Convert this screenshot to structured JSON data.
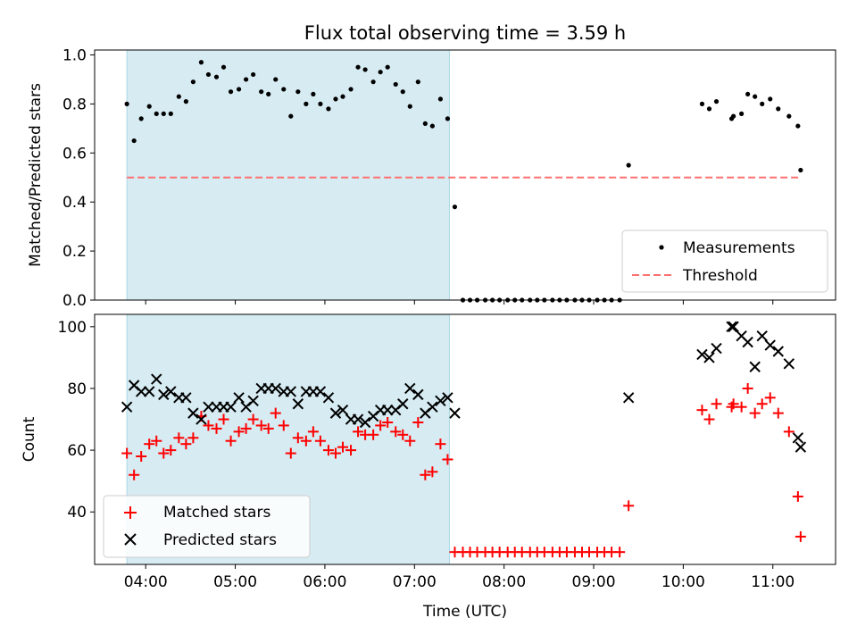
{
  "title": "Flux total observing time = 3.59 h",
  "colors": {
    "shade": "#add8e6",
    "measurement": "#000000",
    "threshold": "#ff7070",
    "matched": "#ff0000",
    "predicted": "#000000"
  },
  "xlabel": "Time (UTC)",
  "x_ticks": [
    "04:00",
    "05:00",
    "06:00",
    "07:00",
    "08:00",
    "09:00",
    "10:00",
    "11:00"
  ],
  "chart_data": [
    {
      "type": "scatter",
      "ylabel": "Matched/Predicted stars",
      "xlim": [
        3.43,
        11.7
      ],
      "ylim": [
        0,
        1.02
      ],
      "y_ticks": [
        "0.0",
        "0.2",
        "0.4",
        "0.6",
        "0.8",
        "1.0"
      ],
      "shaded_region": [
        3.79,
        7.39
      ],
      "legend": {
        "position": "lower-right",
        "entries": [
          "Measurements",
          "Threshold"
        ]
      },
      "threshold": {
        "name": "Threshold",
        "value": 0.5,
        "x": [
          3.79,
          11.32
        ]
      },
      "series": [
        {
          "name": "Measurements",
          "points": [
            [
              3.79,
              0.8
            ],
            [
              3.87,
              0.65
            ],
            [
              3.95,
              0.74
            ],
            [
              4.04,
              0.79
            ],
            [
              4.12,
              0.76
            ],
            [
              4.2,
              0.76
            ],
            [
              4.28,
              0.76
            ],
            [
              4.37,
              0.83
            ],
            [
              4.45,
              0.81
            ],
            [
              4.53,
              0.89
            ],
            [
              4.62,
              0.97
            ],
            [
              4.7,
              0.92
            ],
            [
              4.79,
              0.91
            ],
            [
              4.87,
              0.95
            ],
            [
              4.95,
              0.85
            ],
            [
              5.04,
              0.86
            ],
            [
              5.12,
              0.9
            ],
            [
              5.2,
              0.92
            ],
            [
              5.29,
              0.85
            ],
            [
              5.37,
              0.84
            ],
            [
              5.45,
              0.9
            ],
            [
              5.54,
              0.86
            ],
            [
              5.62,
              0.75
            ],
            [
              5.7,
              0.85
            ],
            [
              5.79,
              0.8
            ],
            [
              5.87,
              0.84
            ],
            [
              5.95,
              0.8
            ],
            [
              6.04,
              0.78
            ],
            [
              6.12,
              0.82
            ],
            [
              6.2,
              0.83
            ],
            [
              6.29,
              0.86
            ],
            [
              6.37,
              0.95
            ],
            [
              6.45,
              0.94
            ],
            [
              6.54,
              0.89
            ],
            [
              6.62,
              0.93
            ],
            [
              6.7,
              0.95
            ],
            [
              6.79,
              0.88
            ],
            [
              6.87,
              0.85
            ],
            [
              6.95,
              0.79
            ],
            [
              7.04,
              0.89
            ],
            [
              7.12,
              0.72
            ],
            [
              7.2,
              0.71
            ],
            [
              7.29,
              0.82
            ],
            [
              7.37,
              0.74
            ],
            [
              7.45,
              0.38
            ],
            [
              7.54,
              0.0
            ],
            [
              7.62,
              0.0
            ],
            [
              7.7,
              0.0
            ],
            [
              7.79,
              0.0
            ],
            [
              7.87,
              0.0
            ],
            [
              7.95,
              0.0
            ],
            [
              8.04,
              0.0
            ],
            [
              8.12,
              0.0
            ],
            [
              8.2,
              0.0
            ],
            [
              8.29,
              0.0
            ],
            [
              8.37,
              0.0
            ],
            [
              8.45,
              0.0
            ],
            [
              8.54,
              0.0
            ],
            [
              8.62,
              0.0
            ],
            [
              8.7,
              0.0
            ],
            [
              8.79,
              0.0
            ],
            [
              8.87,
              0.0
            ],
            [
              8.95,
              0.0
            ],
            [
              9.04,
              0.0
            ],
            [
              9.12,
              0.0
            ],
            [
              9.2,
              0.0
            ],
            [
              9.29,
              0.0
            ],
            [
              9.39,
              0.55
            ],
            [
              10.21,
              0.8
            ],
            [
              10.29,
              0.78
            ],
            [
              10.37,
              0.81
            ],
            [
              10.54,
              0.74
            ],
            [
              10.56,
              0.75
            ],
            [
              10.65,
              0.76
            ],
            [
              10.72,
              0.84
            ],
            [
              10.8,
              0.83
            ],
            [
              10.88,
              0.8
            ],
            [
              10.97,
              0.82
            ],
            [
              11.06,
              0.78
            ],
            [
              11.18,
              0.75
            ],
            [
              11.28,
              0.71
            ],
            [
              11.31,
              0.53
            ]
          ]
        }
      ]
    },
    {
      "type": "scatter",
      "ylabel": "Count",
      "xlim": [
        3.43,
        11.7
      ],
      "ylim": [
        23,
        104
      ],
      "y_ticks": [
        "40",
        "60",
        "80",
        "100"
      ],
      "shaded_region": [
        3.79,
        7.39
      ],
      "legend": {
        "position": "lower-left",
        "entries": [
          "Matched stars",
          "Predicted stars"
        ]
      },
      "series": [
        {
          "name": "Matched stars",
          "marker": "plus",
          "points": [
            [
              3.79,
              59
            ],
            [
              3.87,
              52
            ],
            [
              3.95,
              58
            ],
            [
              4.04,
              62
            ],
            [
              4.12,
              63
            ],
            [
              4.2,
              59
            ],
            [
              4.28,
              60
            ],
            [
              4.37,
              64
            ],
            [
              4.45,
              62
            ],
            [
              4.53,
              64
            ],
            [
              4.62,
              71
            ],
            [
              4.7,
              68
            ],
            [
              4.79,
              67
            ],
            [
              4.87,
              70
            ],
            [
              4.95,
              63
            ],
            [
              5.04,
              66
            ],
            [
              5.12,
              67
            ],
            [
              5.2,
              70
            ],
            [
              5.29,
              68
            ],
            [
              5.37,
              67
            ],
            [
              5.45,
              72
            ],
            [
              5.54,
              68
            ],
            [
              5.62,
              59
            ],
            [
              5.7,
              64
            ],
            [
              5.79,
              63
            ],
            [
              5.87,
              66
            ],
            [
              5.95,
              63
            ],
            [
              6.04,
              60
            ],
            [
              6.12,
              59
            ],
            [
              6.2,
              61
            ],
            [
              6.29,
              60
            ],
            [
              6.37,
              66
            ],
            [
              6.45,
              65
            ],
            [
              6.54,
              65
            ],
            [
              6.62,
              68
            ],
            [
              6.7,
              69
            ],
            [
              6.79,
              66
            ],
            [
              6.87,
              65
            ],
            [
              6.95,
              63
            ],
            [
              7.04,
              69
            ],
            [
              7.12,
              52
            ],
            [
              7.2,
              53
            ],
            [
              7.29,
              62
            ],
            [
              7.37,
              57
            ],
            [
              7.45,
              27
            ],
            [
              7.54,
              27
            ],
            [
              7.62,
              27
            ],
            [
              7.7,
              27
            ],
            [
              7.79,
              27
            ],
            [
              7.87,
              27
            ],
            [
              7.95,
              27
            ],
            [
              8.04,
              27
            ],
            [
              8.12,
              27
            ],
            [
              8.2,
              27
            ],
            [
              8.29,
              27
            ],
            [
              8.37,
              27
            ],
            [
              8.45,
              27
            ],
            [
              8.54,
              27
            ],
            [
              8.62,
              27
            ],
            [
              8.7,
              27
            ],
            [
              8.79,
              27
            ],
            [
              8.87,
              27
            ],
            [
              8.95,
              27
            ],
            [
              9.04,
              27
            ],
            [
              9.12,
              27
            ],
            [
              9.2,
              27
            ],
            [
              9.29,
              27
            ],
            [
              9.39,
              42
            ],
            [
              10.21,
              73
            ],
            [
              10.29,
              70
            ],
            [
              10.37,
              75
            ],
            [
              10.54,
              74
            ],
            [
              10.56,
              75
            ],
            [
              10.65,
              74
            ],
            [
              10.72,
              80
            ],
            [
              10.8,
              72
            ],
            [
              10.88,
              75
            ],
            [
              10.97,
              77
            ],
            [
              11.06,
              72
            ],
            [
              11.18,
              66
            ],
            [
              11.28,
              45
            ],
            [
              11.31,
              32
            ]
          ]
        },
        {
          "name": "Predicted stars",
          "marker": "x",
          "points": [
            [
              3.79,
              74
            ],
            [
              3.87,
              81
            ],
            [
              3.95,
              79
            ],
            [
              4.04,
              79
            ],
            [
              4.12,
              83
            ],
            [
              4.2,
              78
            ],
            [
              4.28,
              79
            ],
            [
              4.37,
              77
            ],
            [
              4.45,
              77
            ],
            [
              4.53,
              72
            ],
            [
              4.62,
              70
            ],
            [
              4.7,
              74
            ],
            [
              4.79,
              74
            ],
            [
              4.87,
              74
            ],
            [
              4.95,
              74
            ],
            [
              5.04,
              77
            ],
            [
              5.12,
              74
            ],
            [
              5.2,
              76
            ],
            [
              5.29,
              80
            ],
            [
              5.37,
              80
            ],
            [
              5.45,
              80
            ],
            [
              5.54,
              79
            ],
            [
              5.62,
              79
            ],
            [
              5.7,
              75
            ],
            [
              5.79,
              79
            ],
            [
              5.87,
              79
            ],
            [
              5.95,
              79
            ],
            [
              6.04,
              77
            ],
            [
              6.12,
              72
            ],
            [
              6.2,
              73
            ],
            [
              6.29,
              70
            ],
            [
              6.37,
              70
            ],
            [
              6.45,
              69
            ],
            [
              6.54,
              71
            ],
            [
              6.62,
              73
            ],
            [
              6.7,
              73
            ],
            [
              6.79,
              73
            ],
            [
              6.87,
              75
            ],
            [
              6.95,
              80
            ],
            [
              7.04,
              78
            ],
            [
              7.12,
              72
            ],
            [
              7.2,
              74
            ],
            [
              7.29,
              76
            ],
            [
              7.37,
              77
            ],
            [
              7.45,
              72
            ],
            [
              9.39,
              77
            ],
            [
              10.21,
              91
            ],
            [
              10.29,
              90
            ],
            [
              10.37,
              93
            ],
            [
              10.54,
              100
            ],
            [
              10.56,
              100
            ],
            [
              10.65,
              97
            ],
            [
              10.72,
              95
            ],
            [
              10.8,
              87
            ],
            [
              10.88,
              97
            ],
            [
              10.97,
              94
            ],
            [
              11.06,
              92
            ],
            [
              11.18,
              88
            ],
            [
              11.28,
              64
            ],
            [
              11.31,
              61
            ]
          ]
        }
      ]
    }
  ]
}
